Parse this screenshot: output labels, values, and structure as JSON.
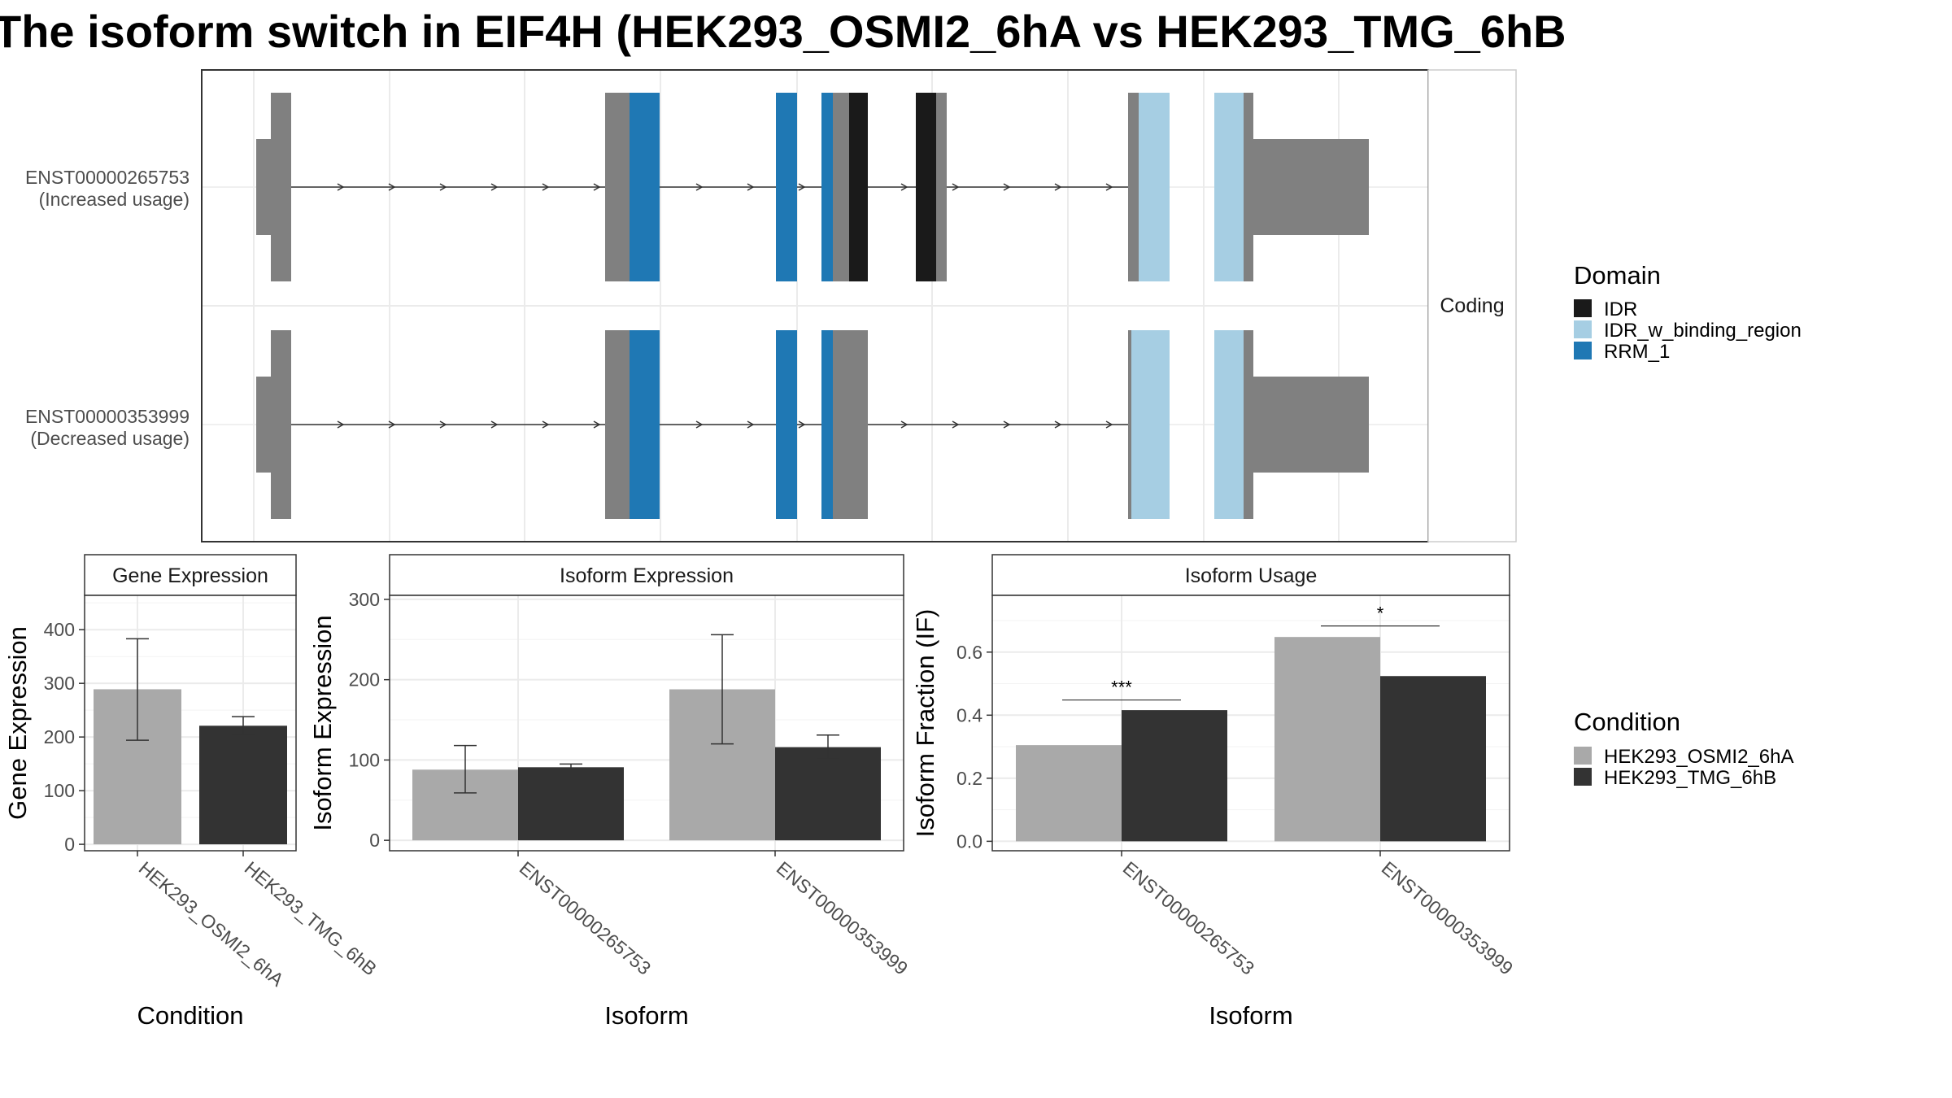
{
  "title": "The isoform switch in EIF4H (HEK293_OSMI2_6hA vs HEK293_TMG_6hB",
  "colors": {
    "exon": "#808080",
    "IDR": "#1a1a1a",
    "IDR_w_binding_region": "#a6cee3",
    "RRM_1": "#1f78b4",
    "condition_a": "#a9a9a9",
    "condition_b": "#333333",
    "grid": "#ebebeb",
    "intron": "#333333"
  },
  "structure": {
    "strip_label": "Coding",
    "transcripts": [
      {
        "id": "ENST00000265753",
        "label_line1": "ENST00000265753",
        "label_line2": "(Increased usage)"
      },
      {
        "id": "ENST00000353999",
        "label_line1": "ENST00000353999",
        "label_line2": "(Decreased usage)"
      }
    ]
  },
  "domain_legend": {
    "title": "Domain",
    "items": [
      {
        "name": "IDR",
        "color": "#1a1a1a"
      },
      {
        "name": "IDR_w_binding_region",
        "color": "#a6cee3"
      },
      {
        "name": "RRM_1",
        "color": "#1f78b4"
      }
    ]
  },
  "condition_legend": {
    "title": "Condition",
    "items": [
      {
        "name": "HEK293_OSMI2_6hA",
        "color": "#a9a9a9"
      },
      {
        "name": "HEK293_TMG_6hB",
        "color": "#333333"
      }
    ]
  },
  "chart_data": [
    {
      "type": "bar",
      "panel": "Gene Expression",
      "strip": "Gene Expression",
      "xlabel": "Condition",
      "ylabel": "Gene Expression",
      "categories": [
        "HEK293_OSMI2_6hA",
        "HEK293_TMG_6hB"
      ],
      "values": [
        289,
        221
      ],
      "error_low": [
        194,
        205
      ],
      "error_high": [
        383,
        238
      ],
      "ylim": [
        -12,
        464
      ],
      "yticks": [
        0,
        100,
        200,
        300,
        400
      ]
    },
    {
      "type": "bar",
      "panel": "Isoform Expression",
      "strip": "Isoform Expression",
      "xlabel": "Isoform",
      "ylabel": "Isoform Expression",
      "categories": [
        "ENST00000265753",
        "ENST00000353999"
      ],
      "series": [
        {
          "name": "HEK293_OSMI2_6hA",
          "values": [
            88,
            188
          ],
          "error_low": [
            59,
            120
          ],
          "error_high": [
            118,
            256
          ]
        },
        {
          "name": "HEK293_TMG_6hB",
          "values": [
            91,
            116
          ],
          "error_low": [
            88,
            101
          ],
          "error_high": [
            95,
            131
          ]
        }
      ],
      "ylim": [
        -13,
        305
      ],
      "yticks": [
        0,
        100,
        200,
        300
      ]
    },
    {
      "type": "bar",
      "panel": "Isoform Usage",
      "strip": "Isoform Usage",
      "xlabel": "Isoform",
      "ylabel": "Isoform Fraction (IF)",
      "categories": [
        "ENST00000265753",
        "ENST00000353999"
      ],
      "series": [
        {
          "name": "HEK293_OSMI2_6hA",
          "values": [
            0.305,
            0.648
          ]
        },
        {
          "name": "HEK293_TMG_6hB",
          "values": [
            0.416,
            0.524
          ]
        }
      ],
      "significance": [
        {
          "category": "ENST00000265753",
          "label": "***",
          "y": 0.448
        },
        {
          "category": "ENST00000353999",
          "label": "*",
          "y": 0.683
        }
      ],
      "ylim": [
        -0.03,
        0.78
      ],
      "yticks": [
        0.0,
        0.2,
        0.4,
        0.6
      ],
      "ytick_labels": [
        "0.0",
        "0.2",
        "0.4",
        "0.6"
      ]
    }
  ]
}
